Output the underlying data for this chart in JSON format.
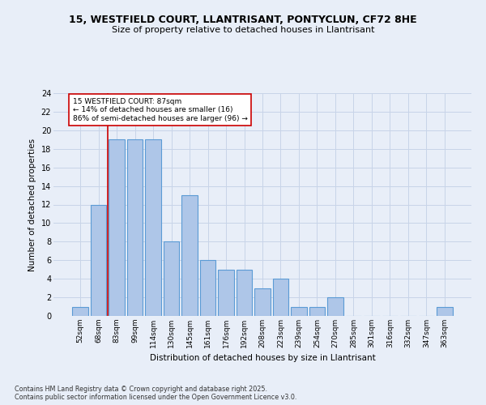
{
  "title_line1": "15, WESTFIELD COURT, LLANTRISANT, PONTYCLUN, CF72 8HE",
  "title_line2": "Size of property relative to detached houses in Llantrisant",
  "xlabel": "Distribution of detached houses by size in Llantrisant",
  "ylabel": "Number of detached properties",
  "bins": [
    "52sqm",
    "68sqm",
    "83sqm",
    "99sqm",
    "114sqm",
    "130sqm",
    "145sqm",
    "161sqm",
    "176sqm",
    "192sqm",
    "208sqm",
    "223sqm",
    "239sqm",
    "254sqm",
    "270sqm",
    "285sqm",
    "301sqm",
    "316sqm",
    "332sqm",
    "347sqm",
    "363sqm"
  ],
  "values": [
    1,
    12,
    19,
    19,
    19,
    8,
    13,
    6,
    5,
    5,
    3,
    4,
    1,
    1,
    2,
    0,
    0,
    0,
    0,
    0,
    1
  ],
  "bar_color": "#aec6e8",
  "bar_edge_color": "#5b9bd5",
  "vline_x": 1.5,
  "annotation_text_line1": "15 WESTFIELD COURT: 87sqm",
  "annotation_text_line2": "← 14% of detached houses are smaller (16)",
  "annotation_text_line3": "86% of semi-detached houses are larger (96) →",
  "annotation_box_color": "#ffffff",
  "annotation_box_edge_color": "#cc0000",
  "vline_color": "#cc0000",
  "ylim": [
    0,
    24
  ],
  "yticks": [
    0,
    2,
    4,
    6,
    8,
    10,
    12,
    14,
    16,
    18,
    20,
    22,
    24
  ],
  "grid_color": "#c8d4e8",
  "footnote_line1": "Contains HM Land Registry data © Crown copyright and database right 2025.",
  "footnote_line2": "Contains public sector information licensed under the Open Government Licence v3.0.",
  "bg_color": "#e8eef8"
}
